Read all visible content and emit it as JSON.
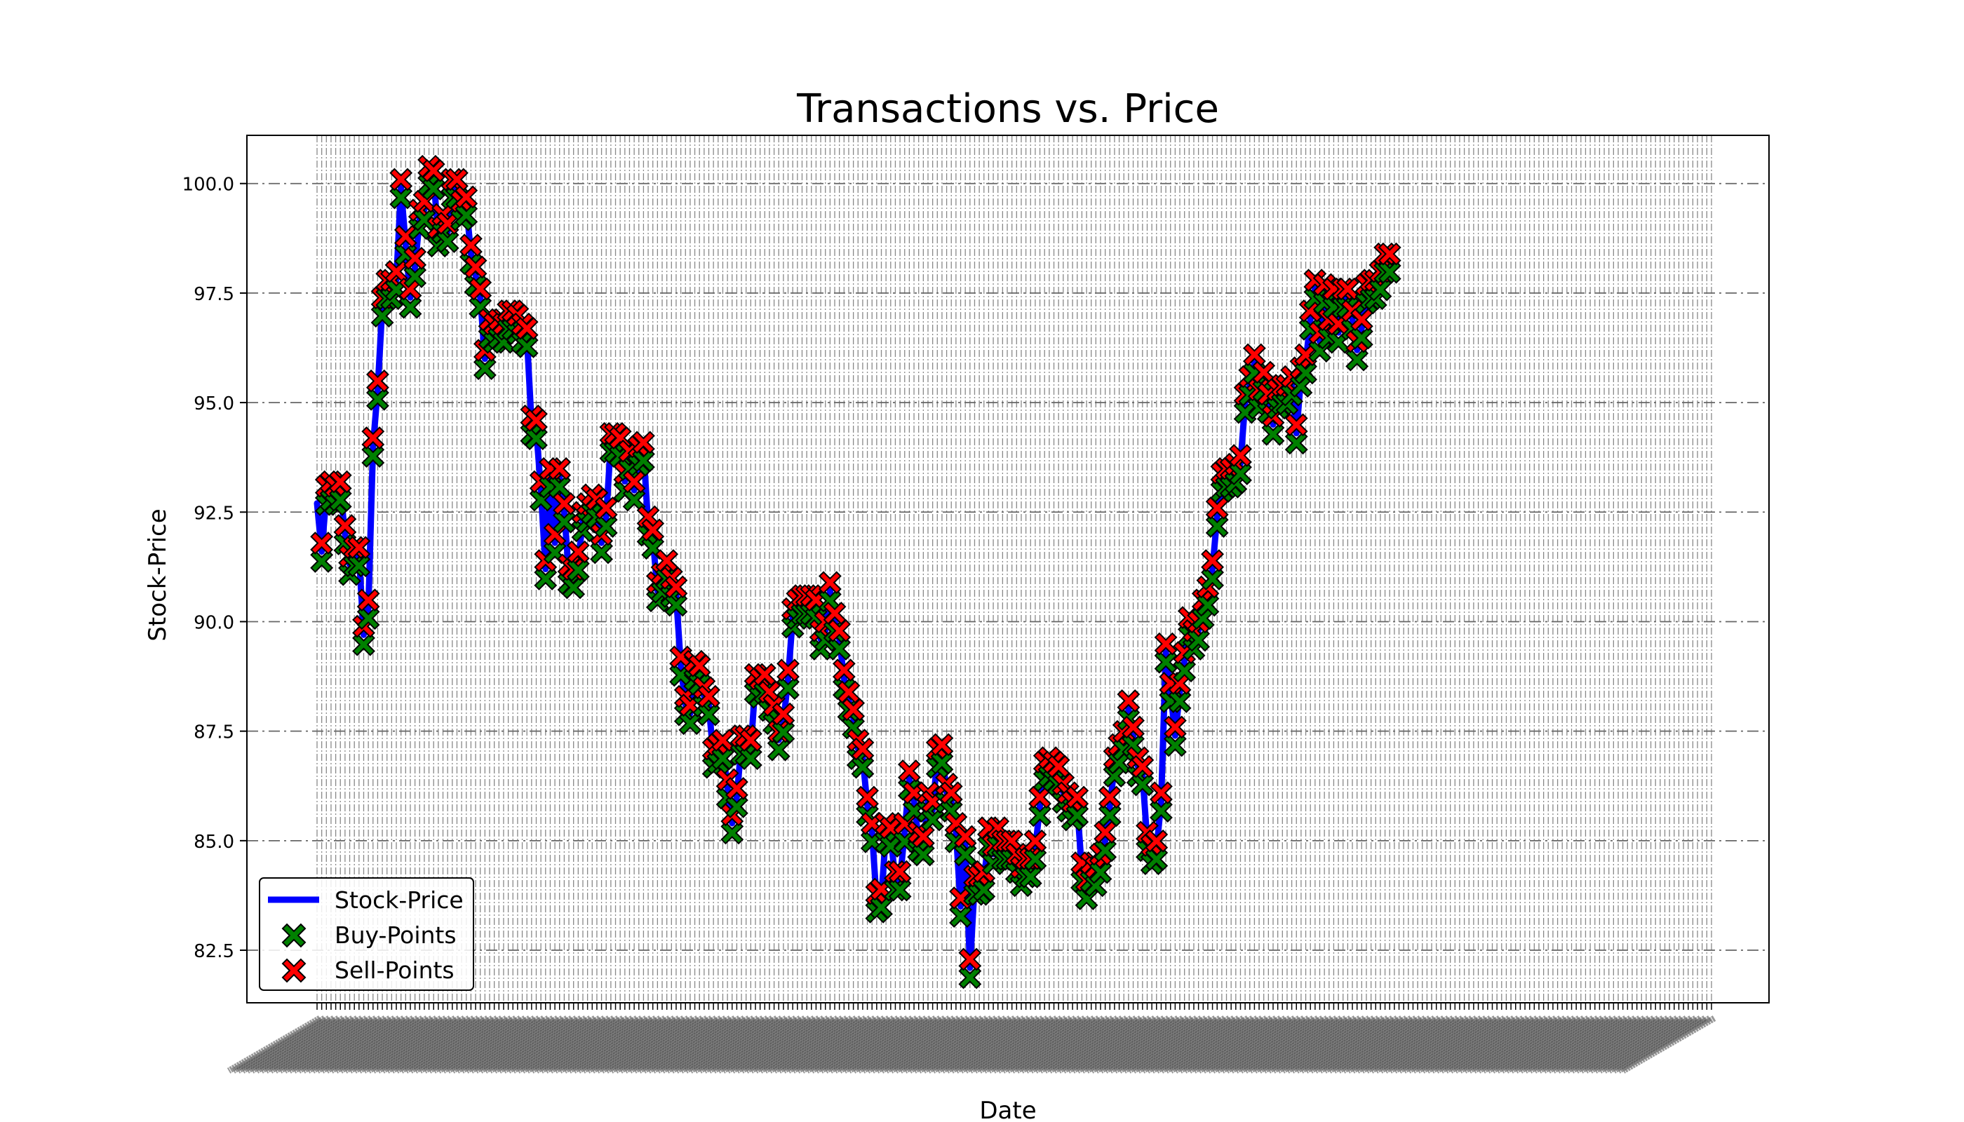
{
  "chart_data": {
    "type": "line",
    "title": "Transactions vs. Price",
    "xlabel": "Date",
    "ylabel": "Stock-Price",
    "ylim": [
      81.3,
      101.1
    ],
    "yticks": [
      82.5,
      85.0,
      87.5,
      90.0,
      92.5,
      95.0,
      97.5,
      100.0
    ],
    "ytick_labels": [
      "82.5",
      "85.0",
      "87.5",
      "90.0",
      "92.5",
      "95.0",
      "97.5",
      "100.0"
    ],
    "grid": true,
    "legend_position": "lower-left",
    "x_tick_count": 300,
    "series": [
      {
        "name": "Stock-Price",
        "kind": "line",
        "color": "#0000ff",
        "values": [
          92.7,
          91.6,
          92.9,
          93.0,
          92.9,
          93.0,
          92.0,
          91.3,
          91.5,
          91.5,
          89.7,
          90.3,
          94.0,
          95.3,
          97.2,
          97.6,
          97.6,
          97.8,
          99.9,
          98.6,
          97.4,
          98.1,
          99.2,
          99.4,
          100.2,
          100.1,
          98.8,
          99.1,
          98.9,
          99.9,
          99.9,
          99.4,
          99.5,
          98.4,
          97.9,
          97.4,
          96.0,
          96.7,
          96.6,
          96.7,
          96.6,
          96.9,
          96.9,
          96.8,
          96.6,
          96.5,
          94.5,
          94.4,
          93.0,
          91.2,
          93.3,
          91.8,
          93.3,
          92.5,
          91.1,
          91.0,
          91.4,
          92.3,
          92.5,
          92.7,
          92.6,
          91.8,
          92.4,
          94.1,
          94.1,
          94.0,
          93.2,
          93.7,
          93.0,
          93.8,
          93.9,
          92.2,
          91.9,
          90.7,
          90.9,
          91.2,
          90.8,
          90.6,
          89.0,
          88.1,
          87.9,
          88.9,
          88.8,
          88.3,
          88.1,
          86.9,
          87.0,
          87.1,
          86.2,
          85.4,
          86.0,
          87.2,
          87.2,
          87.1,
          88.6,
          88.5,
          88.6,
          88.2,
          87.9,
          87.3,
          87.7,
          88.7,
          90.1,
          90.3,
          90.4,
          90.4,
          90.4,
          90.3,
          89.6,
          89.8,
          90.7,
          90.0,
          89.6,
          88.7,
          88.2,
          87.8,
          87.1,
          86.9,
          85.8,
          85.2,
          83.6,
          83.7,
          85.2,
          85.1,
          84.1,
          84.1,
          85.2,
          86.4,
          85.9,
          85.0,
          84.9,
          85.9,
          85.7,
          86.9,
          87.0,
          86.1,
          85.9,
          85.2,
          83.5,
          84.9,
          82.1,
          84.0,
          84.0,
          84.1,
          85.1,
          84.7,
          85.1,
          84.8,
          84.8,
          84.8,
          84.5,
          84.2,
          84.4,
          84.4,
          84.8,
          85.8,
          86.6,
          86.7,
          86.6,
          86.5,
          86.1,
          85.9,
          85.7,
          85.8,
          84.3,
          83.9,
          84.3,
          84.2,
          84.5,
          85.0,
          85.8,
          86.7,
          87.0,
          87.3,
          88.0,
          87.4,
          86.7,
          86.5,
          85.0,
          84.7,
          84.8,
          85.9,
          89.3,
          88.4,
          87.4,
          88.4,
          89.1,
          89.9,
          89.6,
          89.8,
          90.3,
          90.6,
          91.2,
          92.4,
          93.2,
          93.3,
          93.3,
          93.4,
          93.6,
          95.0,
          95.4,
          95.9,
          95.1,
          95.5,
          95.0,
          94.5,
          95.1,
          95.2,
          95.2,
          95.4,
          94.3,
          95.6,
          95.9,
          96.9,
          97.6,
          96.4,
          97.5,
          96.7,
          97.4,
          96.6,
          97.4,
          97.4,
          96.9,
          96.2,
          96.7,
          97.5,
          97.6,
          97.6,
          97.8,
          98.2,
          98.2
        ]
      },
      {
        "name": "Buy-Points",
        "kind": "marker",
        "color": "#008000",
        "marker": "X"
      },
      {
        "name": "Sell-Points",
        "kind": "marker",
        "color": "#ff0000",
        "marker": "X"
      }
    ]
  }
}
